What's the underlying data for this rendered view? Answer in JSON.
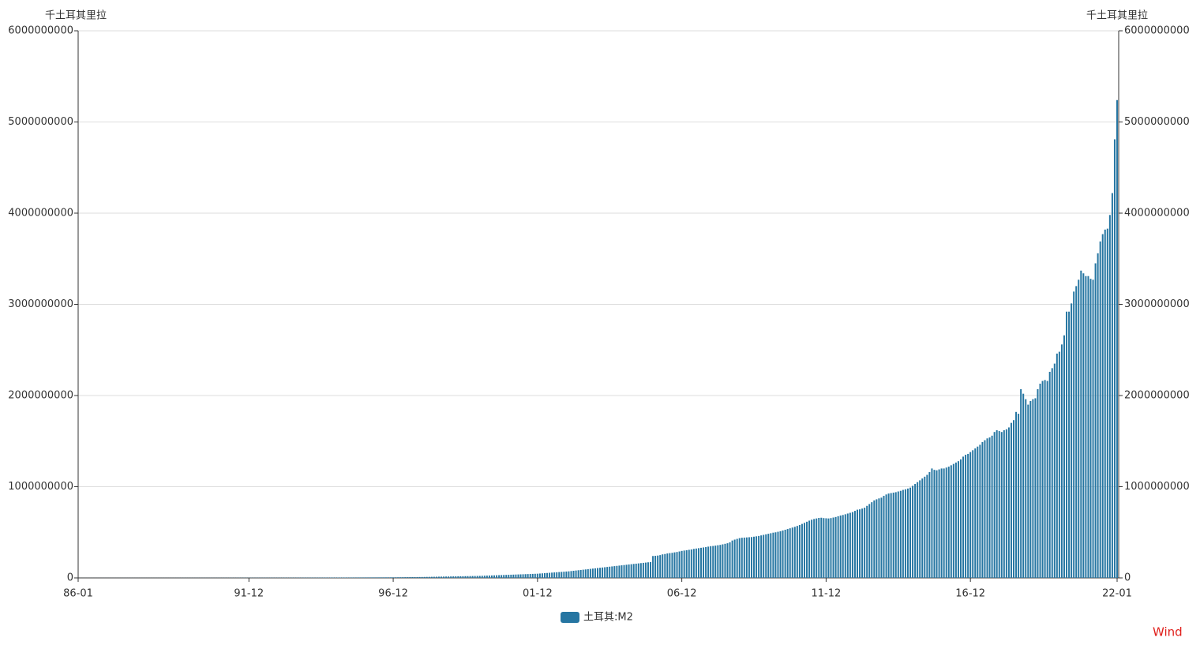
{
  "chart_data": {
    "type": "bar",
    "y_label": "千土耳其里拉",
    "y2_label": "千土耳其里拉",
    "source": "Wind",
    "legend": "bottom",
    "categories": [
      "86-01",
      null,
      null,
      null,
      null,
      null,
      null,
      null,
      null,
      null,
      null,
      null,
      null,
      null,
      null,
      null,
      null,
      null,
      null,
      null,
      null,
      null,
      null,
      null,
      null,
      null,
      null,
      null,
      null,
      null,
      null,
      null,
      null,
      null,
      null,
      null,
      null,
      null,
      null,
      null,
      null,
      null,
      null,
      null,
      null,
      null,
      null,
      null,
      null,
      null,
      null,
      null,
      null,
      null,
      null,
      null,
      null,
      null,
      null,
      null,
      null,
      null,
      null,
      null,
      null,
      null,
      null,
      null,
      null,
      null,
      null,
      "91-12",
      null,
      null,
      null,
      null,
      null,
      null,
      null,
      null,
      null,
      null,
      null,
      null,
      null,
      null,
      null,
      null,
      null,
      null,
      null,
      null,
      null,
      null,
      null,
      null,
      null,
      null,
      null,
      null,
      null,
      null,
      null,
      null,
      null,
      null,
      null,
      null,
      null,
      null,
      null,
      null,
      null,
      null,
      null,
      null,
      null,
      null,
      null,
      null,
      null,
      null,
      null,
      null,
      null,
      null,
      null,
      null,
      null,
      null,
      null,
      "96-12",
      null,
      null,
      null,
      null,
      null,
      null,
      null,
      null,
      null,
      null,
      null,
      null,
      null,
      null,
      null,
      null,
      null,
      null,
      null,
      null,
      null,
      null,
      null,
      null,
      null,
      null,
      null,
      null,
      null,
      null,
      null,
      null,
      null,
      null,
      null,
      null,
      null,
      null,
      null,
      null,
      null,
      null,
      null,
      null,
      null,
      null,
      null,
      null,
      null,
      null,
      null,
      null,
      null,
      null,
      null,
      null,
      null,
      null,
      null,
      "01-12",
      null,
      null,
      null,
      null,
      null,
      null,
      null,
      null,
      null,
      null,
      null,
      null,
      null,
      null,
      null,
      null,
      null,
      null,
      null,
      null,
      null,
      null,
      null,
      null,
      null,
      null,
      null,
      null,
      null,
      null,
      null,
      null,
      null,
      null,
      null,
      null,
      null,
      null,
      null,
      null,
      null,
      null,
      null,
      null,
      null,
      null,
      null,
      null,
      null,
      null,
      null,
      null,
      null,
      null,
      null,
      null,
      null,
      null,
      null,
      "06-12",
      null,
      null,
      null,
      null,
      null,
      null,
      null,
      null,
      null,
      null,
      null,
      null,
      null,
      null,
      null,
      null,
      null,
      null,
      null,
      null,
      null,
      null,
      null,
      null,
      null,
      null,
      null,
      null,
      null,
      null,
      null,
      null,
      null,
      null,
      null,
      null,
      null,
      null,
      null,
      null,
      null,
      null,
      null,
      null,
      null,
      null,
      null,
      null,
      null,
      null,
      null,
      null,
      null,
      null,
      null,
      null,
      null,
      null,
      null,
      "11-12",
      null,
      null,
      null,
      null,
      null,
      null,
      null,
      null,
      null,
      null,
      null,
      null,
      null,
      null,
      null,
      null,
      null,
      null,
      null,
      null,
      null,
      null,
      null,
      null,
      null,
      null,
      null,
      null,
      null,
      null,
      null,
      null,
      null,
      null,
      null,
      null,
      null,
      null,
      null,
      null,
      null,
      null,
      null,
      null,
      null,
      null,
      null,
      null,
      null,
      null,
      null,
      null,
      null,
      null,
      null,
      null,
      null,
      null,
      null,
      "16-12",
      null,
      null,
      null,
      null,
      null,
      null,
      null,
      null,
      null,
      null,
      null,
      null,
      null,
      null,
      null,
      null,
      null,
      null,
      null,
      null,
      null,
      null,
      null,
      null,
      null,
      null,
      null,
      null,
      null,
      null,
      null,
      null,
      null,
      null,
      null,
      null,
      null,
      null,
      null,
      null,
      null,
      null,
      null,
      null,
      null,
      null,
      null,
      null,
      null,
      null,
      null,
      null,
      null,
      null,
      null,
      null,
      null,
      null,
      null,
      null,
      "22-01"
    ],
    "series": [
      {
        "name": "土耳其:M2",
        "color": "#2676a2",
        "values": [
          300000,
          310000,
          320000,
          330000,
          340000,
          350000,
          360000,
          370000,
          380000,
          390000,
          400000,
          410000,
          420000,
          430000,
          440000,
          450000,
          460000,
          470000,
          480000,
          490000,
          500000,
          510000,
          520000,
          530000,
          540000,
          550000,
          560000,
          570000,
          580000,
          590000,
          600000,
          610000,
          620000,
          640000,
          660000,
          680000,
          700000,
          720000,
          740000,
          760000,
          780000,
          800000,
          820000,
          840000,
          860000,
          880000,
          900000,
          920000,
          950000,
          980000,
          1010000,
          1040000,
          1070000,
          1100000,
          1130000,
          1160000,
          1190000,
          1220000,
          1250000,
          1280000,
          1320000,
          1360000,
          1400000,
          1440000,
          1480000,
          1520000,
          1560000,
          1600000,
          1640000,
          1680000,
          1720000,
          1760000,
          1800000,
          1850000,
          1900000,
          1950000,
          2000000,
          2050000,
          2100000,
          2150000,
          2200000,
          2250000,
          2300000,
          2350000,
          2400000,
          2450000,
          2500000,
          2550000,
          2600000,
          2650000,
          2700000,
          2750000,
          2800000,
          2850000,
          2900000,
          2950000,
          3000000,
          3100000,
          3200000,
          3300000,
          3400000,
          3500000,
          3600000,
          3700000,
          3800000,
          3900000,
          4000000,
          4100000,
          4200000,
          4300000,
          4400000,
          4500000,
          4600000,
          4700000,
          4800000,
          4900000,
          5000000,
          5100000,
          5200000,
          5300000,
          5400000,
          5500000,
          5600000,
          5700000,
          5800000,
          5900000,
          6000000,
          6100000,
          6200000,
          6300000,
          6400000,
          6500000,
          6800000,
          7100000,
          7400000,
          7700000,
          8000000,
          8300000,
          8600000,
          8900000,
          9200000,
          9500000,
          9800000,
          10100000,
          10500000,
          11000000,
          11500000,
          12000000,
          12500000,
          13000000,
          13500000,
          14000000,
          14500000,
          15000000,
          15500000,
          16000000,
          16500000,
          17000000,
          17500000,
          18000000,
          18500000,
          19000000,
          19500000,
          20000000,
          20500000,
          21000000,
          21500000,
          22000000,
          23000000,
          24000000,
          25000000,
          26000000,
          27000000,
          28000000,
          29000000,
          30000000,
          31000000,
          32000000,
          33000000,
          34000000,
          35000000,
          36000000,
          37000000,
          38000000,
          39000000,
          40000000,
          41000000,
          42000000,
          43000000,
          44000000,
          45000000,
          46000000,
          48000000,
          50000000,
          52000000,
          54000000,
          56000000,
          58000000,
          60000000,
          62000000,
          64000000,
          66000000,
          68000000,
          70000000,
          72000000,
          75000000,
          78000000,
          81000000,
          84000000,
          87000000,
          90000000,
          93000000,
          96000000,
          99000000,
          102000000,
          105000000,
          108000000,
          111000000,
          114000000,
          117000000,
          120000000,
          123000000,
          126000000,
          129000000,
          132000000,
          135000000,
          138000000,
          141000000,
          144000000,
          147000000,
          150000000,
          153000000,
          156000000,
          159000000,
          162000000,
          165000000,
          168000000,
          171000000,
          174000000,
          240000000,
          242000000,
          245000000,
          250000000,
          258000000,
          262000000,
          268000000,
          272000000,
          275000000,
          280000000,
          284000000,
          290000000,
          296000000,
          300000000,
          304000000,
          308000000,
          312000000,
          318000000,
          322000000,
          326000000,
          330000000,
          334000000,
          338000000,
          343000000,
          348000000,
          350000000,
          354000000,
          358000000,
          362000000,
          368000000,
          374000000,
          380000000,
          390000000,
          410000000,
          420000000,
          428000000,
          436000000,
          440000000,
          442000000,
          444000000,
          446000000,
          448000000,
          452000000,
          456000000,
          460000000,
          466000000,
          472000000,
          478000000,
          484000000,
          490000000,
          496000000,
          500000000,
          506000000,
          512000000,
          520000000,
          528000000,
          536000000,
          544000000,
          552000000,
          560000000,
          570000000,
          580000000,
          592000000,
          604000000,
          616000000,
          628000000,
          638000000,
          646000000,
          652000000,
          658000000,
          660000000,
          656000000,
          654000000,
          652000000,
          656000000,
          662000000,
          668000000,
          676000000,
          684000000,
          690000000,
          698000000,
          706000000,
          714000000,
          722000000,
          735000000,
          748000000,
          752000000,
          760000000,
          770000000,
          790000000,
          810000000,
          830000000,
          850000000,
          862000000,
          872000000,
          880000000,
          900000000,
          915000000,
          925000000,
          930000000,
          935000000,
          940000000,
          948000000,
          955000000,
          965000000,
          972000000,
          980000000,
          990000000,
          1010000000,
          1030000000,
          1050000000,
          1070000000,
          1090000000,
          1110000000,
          1130000000,
          1160000000,
          1200000000,
          1185000000,
          1180000000,
          1190000000,
          1200000000,
          1200000000,
          1210000000,
          1220000000,
          1235000000,
          1250000000,
          1265000000,
          1280000000,
          1300000000,
          1330000000,
          1350000000,
          1360000000,
          1380000000,
          1400000000,
          1420000000,
          1440000000,
          1460000000,
          1490000000,
          1510000000,
          1530000000,
          1540000000,
          1560000000,
          1600000000,
          1620000000,
          1610000000,
          1600000000,
          1620000000,
          1630000000,
          1650000000,
          1700000000,
          1730000000,
          1820000000,
          1800000000,
          2070000000,
          2020000000,
          1960000000,
          1900000000,
          1940000000,
          1960000000,
          1970000000,
          2070000000,
          2130000000,
          2160000000,
          2170000000,
          2160000000,
          2260000000,
          2300000000,
          2350000000,
          2460000000,
          2480000000,
          2560000000,
          2660000000,
          2920000000,
          2920000000,
          3010000000,
          3140000000,
          3200000000,
          3270000000,
          3370000000,
          3340000000,
          3310000000,
          3310000000,
          3280000000,
          3270000000,
          3450000000,
          3560000000,
          3690000000,
          3770000000,
          3820000000,
          3830000000,
          3980000000,
          4220000000,
          4810000000,
          5240000000
        ]
      }
    ],
    "ylim": [
      0,
      6000000000
    ],
    "yticks": [
      0,
      1000000000,
      2000000000,
      3000000000,
      4000000000,
      5000000000,
      6000000000
    ],
    "y2lim": [
      0,
      6000000000
    ],
    "y2ticks": [
      0,
      1000000000,
      2000000000,
      3000000000,
      4000000000,
      5000000000,
      6000000000
    ],
    "grid": true
  }
}
